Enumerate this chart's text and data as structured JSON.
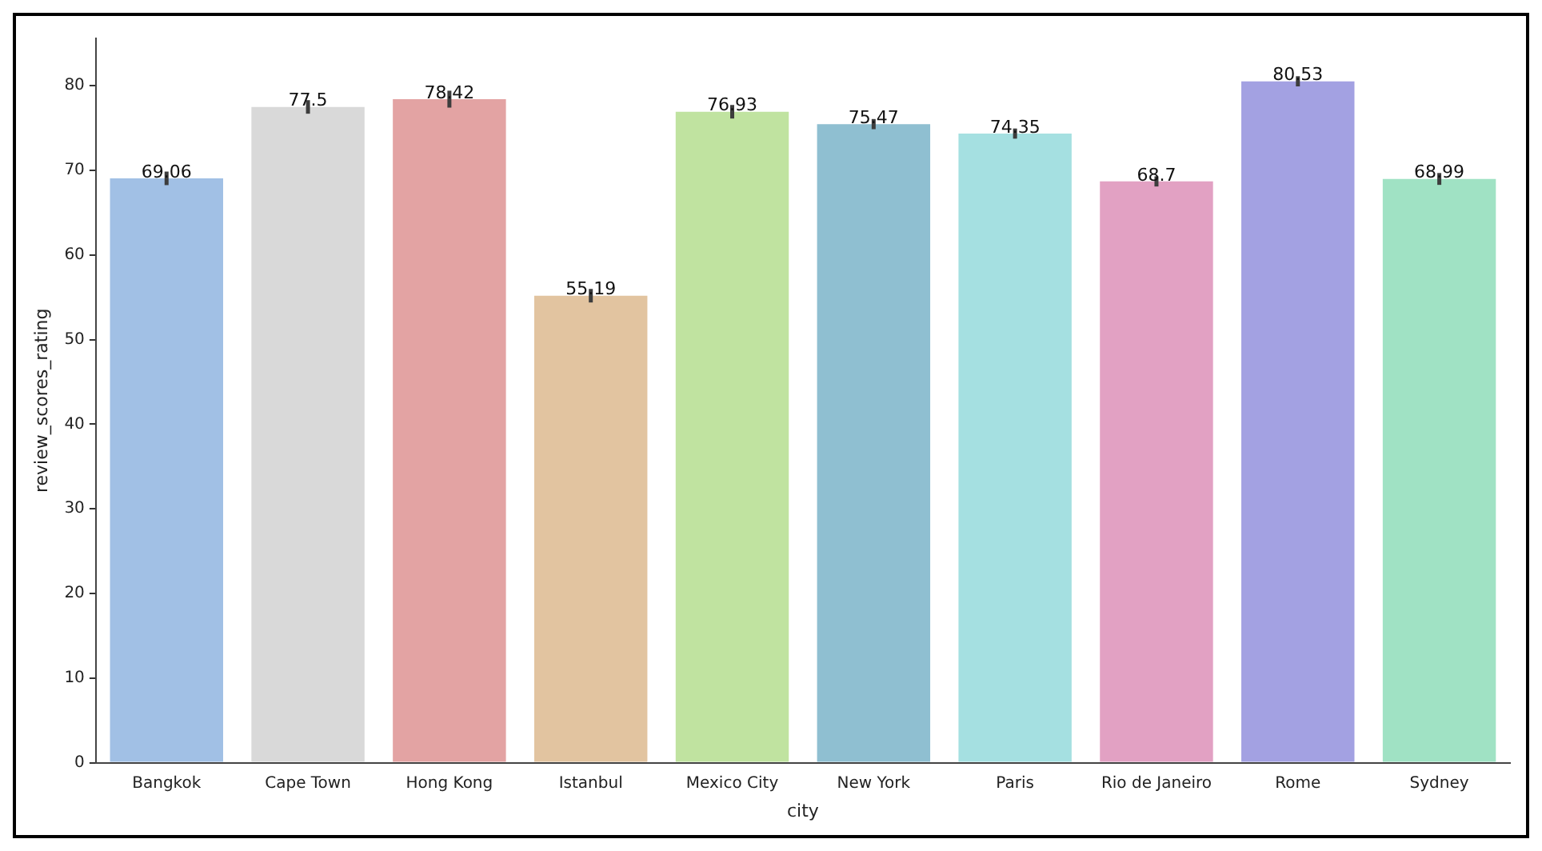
{
  "chart_data": {
    "type": "bar",
    "xlabel": "city",
    "ylabel": "review_scores_rating",
    "categories": [
      "Bangkok",
      "Cape Town",
      "Hong Kong",
      "Istanbul",
      "Mexico City",
      "New York",
      "Paris",
      "Rio de Janeiro",
      "Rome",
      "Sydney"
    ],
    "values": [
      69.06,
      77.5,
      78.42,
      55.19,
      76.93,
      75.47,
      74.35,
      68.7,
      80.53,
      68.99
    ],
    "colors": [
      "#a1c0e5",
      "#d9d9d9",
      "#e3a3a3",
      "#e2c4a0",
      "#c0e3a0",
      "#8fbfd1",
      "#a5e0e1",
      "#e2a1c3",
      "#a3a1e2",
      "#a0e2c4"
    ],
    "errors": [
      0.8,
      0.8,
      1,
      0.8,
      0.8,
      0.6,
      0.6,
      0.6,
      0.6,
      0.7
    ],
    "data_labels": true,
    "ylim": [
      0,
      85.6
    ],
    "yticks": [
      0,
      10,
      20,
      30,
      40,
      50,
      60,
      70,
      80
    ],
    "grid": false
  }
}
